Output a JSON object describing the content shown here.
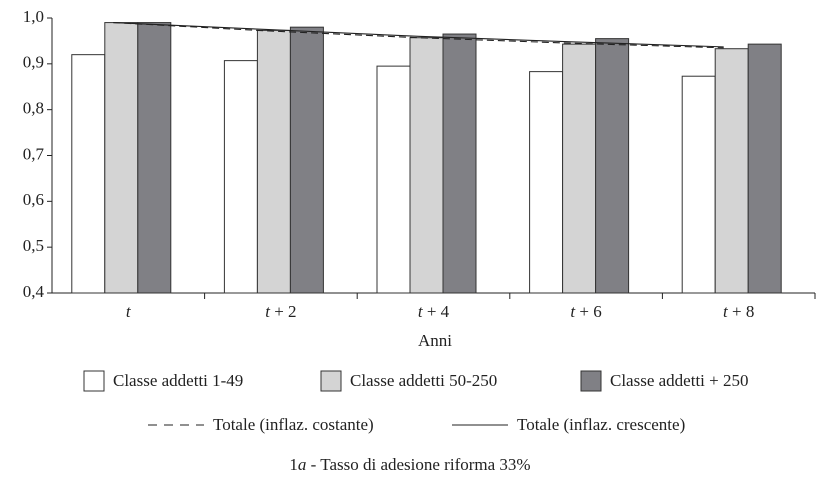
{
  "chart_data": {
    "type": "bar",
    "categories": [
      "t",
      "t + 2",
      "t + 4",
      "t + 6",
      "t + 8"
    ],
    "x_label": "Anni",
    "caption": [
      "1",
      "a",
      " - Tasso di adesione riforma 33%"
    ],
    "ylim": [
      0.4,
      1.0
    ],
    "yticks": [
      {
        "value": 0.4,
        "label": "0,4"
      },
      {
        "value": 0.5,
        "label": "0,5"
      },
      {
        "value": 0.6,
        "label": "0,6"
      },
      {
        "value": 0.7,
        "label": "0,7"
      },
      {
        "value": 0.8,
        "label": "0,8"
      },
      {
        "value": 0.9,
        "label": "0,9"
      },
      {
        "value": 1.0,
        "label": "1,0"
      }
    ],
    "series": [
      {
        "name": "Classe addetti 1-49",
        "color": "#ffffff",
        "values": [
          0.92,
          0.907,
          0.895,
          0.883,
          0.873
        ]
      },
      {
        "name": "Classe addetti 50-250",
        "color": "#d4d4d4",
        "values": [
          0.99,
          0.973,
          0.957,
          0.943,
          0.933
        ]
      },
      {
        "name": "Classe addetti + 250",
        "color": "#808085",
        "values": [
          0.99,
          0.98,
          0.965,
          0.955,
          0.943
        ]
      },
      {
        "name": "Totale (inflaz. costante)",
        "type": "line",
        "dash": true,
        "color": "#222222",
        "values": [
          0.99,
          0.972,
          0.957,
          0.945,
          0.935
        ]
      },
      {
        "name": "Totale (inflaz. crescente)",
        "type": "line",
        "dash": false,
        "color": "#222222",
        "values": [
          0.99,
          0.975,
          0.96,
          0.948,
          0.937
        ]
      }
    ]
  }
}
